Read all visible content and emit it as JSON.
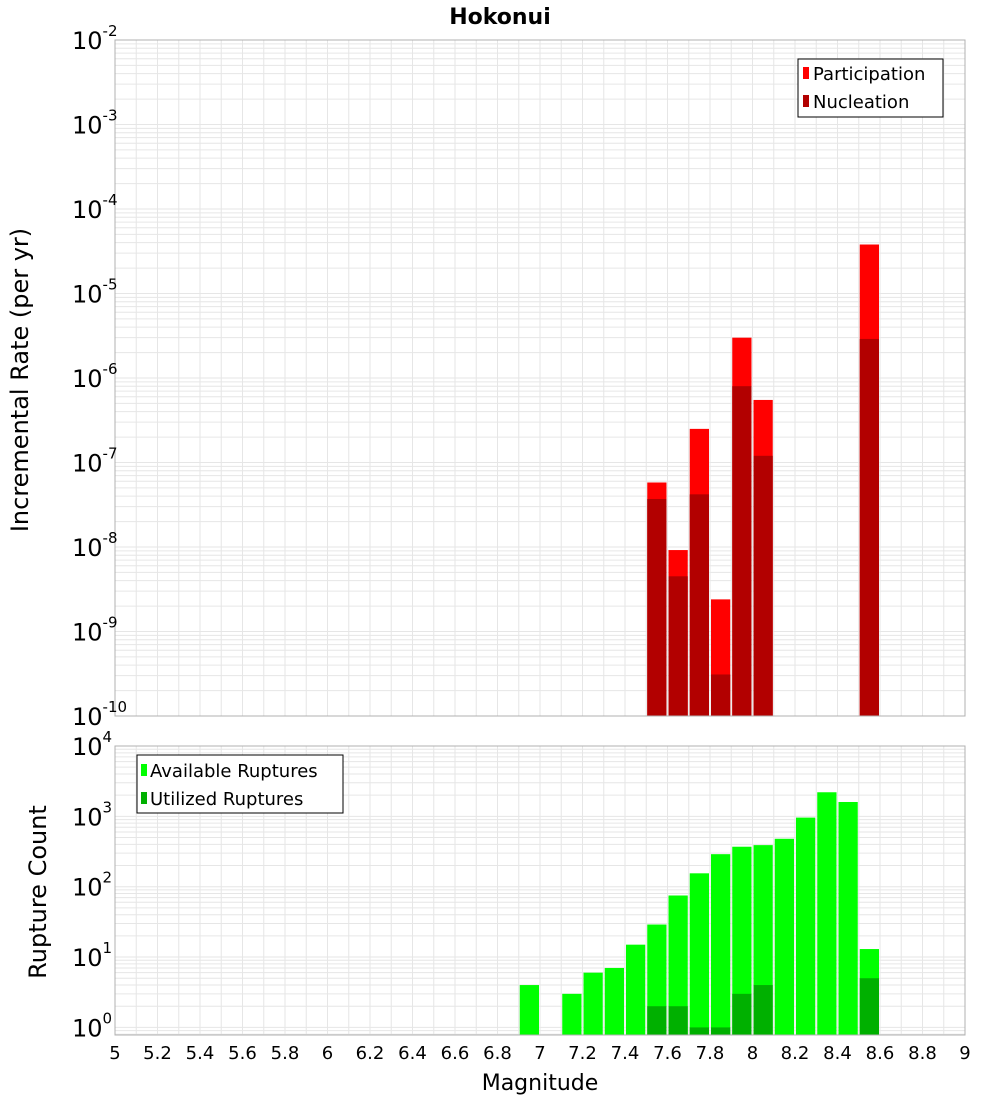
{
  "colors": {
    "participation": "#ff0000",
    "nucleation": "#b20000",
    "available": "#00ff00",
    "utilized": "#00b000",
    "grid": "#e6e6e6",
    "frame": "#b0b0b0"
  },
  "chart_data": [
    {
      "type": "bar",
      "title": "Hokonui",
      "xlabel": "",
      "ylabel": "Incremental Rate (per yr)",
      "yscale": "log",
      "ylim": [
        1e-10,
        0.01
      ],
      "xlim": [
        5,
        9
      ],
      "x_ticks": [],
      "y_tick_labels": [
        {
          "base": "10",
          "exp": "-10",
          "value": 1e-10
        },
        {
          "base": "10",
          "exp": "-9",
          "value": 1e-09
        },
        {
          "base": "10",
          "exp": "-8",
          "value": 1e-08
        },
        {
          "base": "10",
          "exp": "-7",
          "value": 1e-07
        },
        {
          "base": "10",
          "exp": "-6",
          "value": 1e-06
        },
        {
          "base": "10",
          "exp": "-5",
          "value": 1e-05
        },
        {
          "base": "10",
          "exp": "-4",
          "value": 0.0001
        },
        {
          "base": "10",
          "exp": "-3",
          "value": 0.001
        },
        {
          "base": "10",
          "exp": "-2",
          "value": 0.01
        }
      ],
      "legend": {
        "placement": "top-right",
        "entries": [
          "Participation",
          "Nucleation"
        ]
      },
      "bin_width": 0.1,
      "series": [
        {
          "name": "Participation",
          "color_key": "participation",
          "x": [
            7.55,
            7.65,
            7.75,
            7.85,
            7.95,
            8.05,
            8.55
          ],
          "values": [
            5.8e-08,
            9.2e-09,
            2.5e-07,
            2.4e-09,
            3e-06,
            5.5e-07,
            3.8e-05
          ]
        },
        {
          "name": "Nucleation",
          "color_key": "nucleation",
          "x": [
            7.55,
            7.65,
            7.75,
            7.85,
            7.95,
            8.05,
            8.55
          ],
          "values": [
            3.7e-08,
            4.5e-09,
            4.2e-08,
            3.1e-10,
            8e-07,
            1.2e-07,
            2.9e-06
          ]
        }
      ]
    },
    {
      "type": "bar",
      "title": "",
      "xlabel": "Magnitude",
      "ylabel": "Rupture Count",
      "yscale": "log",
      "ylim": [
        0.78,
        10000
      ],
      "xlim": [
        5,
        9
      ],
      "x_ticks": [
        "5",
        "5.2",
        "5.4",
        "5.6",
        "5.8",
        "6",
        "6.2",
        "6.4",
        "6.6",
        "6.8",
        "7",
        "7.2",
        "7.4",
        "7.6",
        "7.8",
        "8",
        "8.2",
        "8.4",
        "8.6",
        "8.8",
        "9"
      ],
      "y_tick_labels": [
        {
          "base": "10",
          "exp": "0",
          "value": 1
        },
        {
          "base": "10",
          "exp": "1",
          "value": 10
        },
        {
          "base": "10",
          "exp": "2",
          "value": 100
        },
        {
          "base": "10",
          "exp": "3",
          "value": 1000
        },
        {
          "base": "10",
          "exp": "4",
          "value": 10000
        }
      ],
      "legend": {
        "placement": "top-left",
        "entries": [
          "Available Ruptures",
          "Utilized Ruptures"
        ]
      },
      "bin_width": 0.1,
      "series": [
        {
          "name": "Available Ruptures",
          "color_key": "available",
          "x": [
            6.95,
            7.15,
            7.25,
            7.35,
            7.45,
            7.55,
            7.65,
            7.75,
            7.85,
            7.95,
            8.05,
            8.15,
            8.25,
            8.35,
            8.45,
            8.55
          ],
          "values": [
            4,
            3,
            6,
            7,
            15,
            29,
            75,
            155,
            290,
            370,
            390,
            480,
            960,
            2200,
            1600,
            13
          ]
        },
        {
          "name": "Utilized Ruptures",
          "color_key": "utilized",
          "x": [
            7.55,
            7.65,
            7.75,
            7.85,
            7.95,
            8.05,
            8.55
          ],
          "values": [
            2,
            2,
            1,
            1,
            3,
            4,
            5
          ]
        }
      ]
    }
  ]
}
